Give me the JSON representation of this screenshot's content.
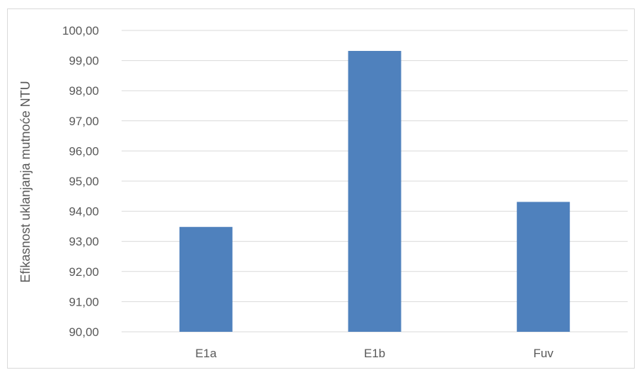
{
  "chart_data": {
    "type": "bar",
    "title": "",
    "xlabel": "",
    "ylabel": "Efikasnost uklanjanja mutnoće NTU",
    "categories": [
      "E1a",
      "E1b",
      "Fuv"
    ],
    "values": [
      93.48,
      99.32,
      94.31
    ],
    "ylim": [
      90,
      100
    ],
    "ytick_step": 1,
    "ytick_labels": [
      "90,00",
      "91,00",
      "92,00",
      "93,00",
      "94,00",
      "95,00",
      "96,00",
      "97,00",
      "98,00",
      "99,00",
      "100,00"
    ],
    "grid": true,
    "legend": "none",
    "colors": {
      "bar": "#4f81bd",
      "grid": "#d9d9d9",
      "text": "#595959"
    }
  }
}
